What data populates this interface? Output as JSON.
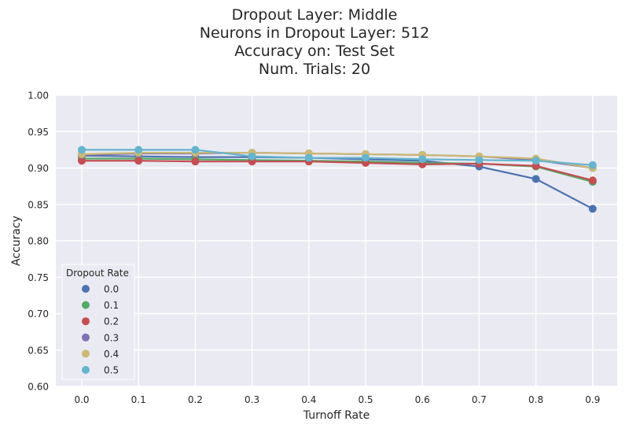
{
  "chart_data": {
    "type": "line",
    "title_lines": [
      "Dropout Layer: Middle",
      "Neurons in Dropout Layer: 512",
      "Accuracy on: Test Set",
      "Num. Trials: 20"
    ],
    "xlabel": "Turnoff Rate",
    "ylabel": "Accuracy",
    "categories": [
      "0.0",
      "0.1",
      "0.2",
      "0.3",
      "0.4",
      "0.5",
      "0.6",
      "0.7",
      "0.8",
      "0.9"
    ],
    "ylim": [
      0.6,
      1.0
    ],
    "yticks": [
      "0.60",
      "0.65",
      "0.70",
      "0.75",
      "0.80",
      "0.85",
      "0.90",
      "0.95",
      "1.00"
    ],
    "grid": true,
    "legend": {
      "title": "Dropout Rate",
      "placement": "lower-left"
    },
    "series": [
      {
        "name": "0.0",
        "color": "#4c72b0",
        "values": [
          0.917,
          0.916,
          0.915,
          0.915,
          0.914,
          0.912,
          0.91,
          0.902,
          0.885,
          0.844
        ]
      },
      {
        "name": "0.1",
        "color": "#55a868",
        "values": [
          0.913,
          0.913,
          0.912,
          0.911,
          0.91,
          0.909,
          0.907,
          0.906,
          0.902,
          0.881
        ]
      },
      {
        "name": "0.2",
        "color": "#c44e52",
        "values": [
          0.91,
          0.91,
          0.909,
          0.909,
          0.909,
          0.907,
          0.905,
          0.906,
          0.903,
          0.883
        ]
      },
      {
        "name": "0.3",
        "color": "#8172b2",
        "values": [
          0.918,
          0.92,
          0.92,
          0.921,
          0.92,
          0.919,
          0.918,
          0.916,
          0.911,
          0.9
        ]
      },
      {
        "name": "0.4",
        "color": "#ccb974",
        "values": [
          0.919,
          0.921,
          0.921,
          0.921,
          0.92,
          0.919,
          0.918,
          0.916,
          0.913,
          0.9
        ]
      },
      {
        "name": "0.5",
        "color": "#64b5cd",
        "values": [
          0.925,
          0.925,
          0.925,
          0.916,
          0.914,
          0.914,
          0.912,
          0.911,
          0.91,
          0.904
        ]
      }
    ]
  }
}
